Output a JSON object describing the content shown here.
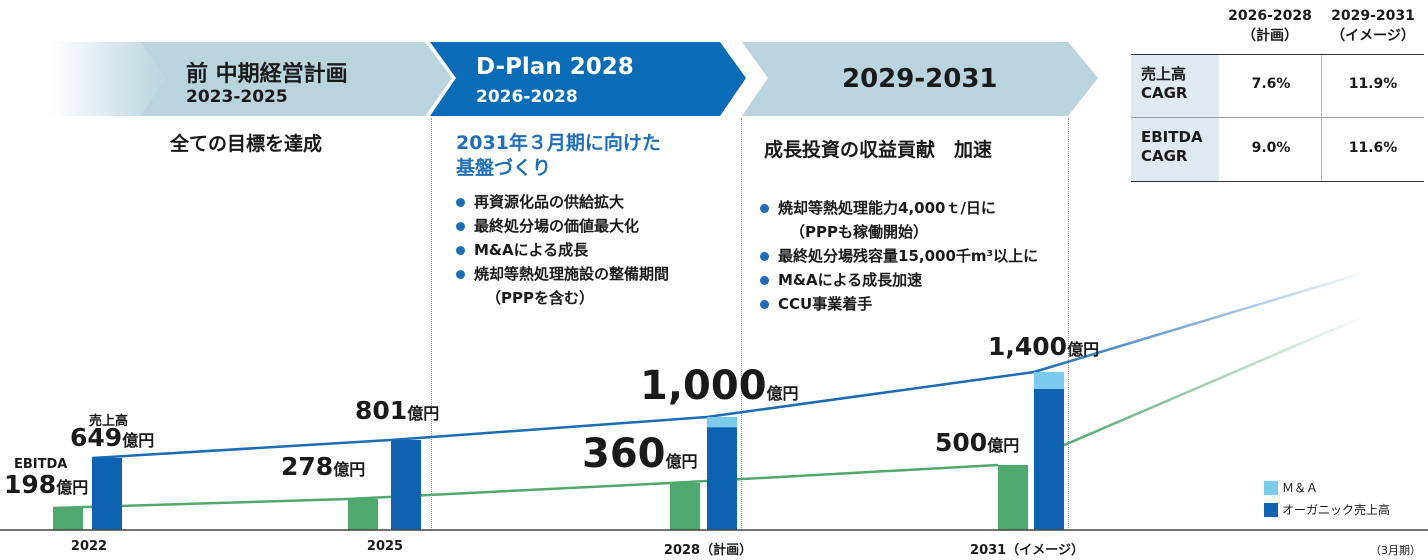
{
  "phases": [
    {
      "title": "前 中期経営計画",
      "sub": "2023-2025",
      "subtitle": "全ての目標を達成"
    },
    {
      "title": "D-Plan 2028",
      "sub": "2026-2028",
      "subtitle": "2031年３月期に向けた\n基盤づくり",
      "bullets": [
        "再資源化品の供給拡大",
        "最終処分場の価値最大化",
        "M&Aによる成長",
        "焼却等熱処理施設の整備期間",
        "（PPPを含む）"
      ]
    },
    {
      "title": "2029-2031",
      "subtitle": "成長投資の収益貢献　加速",
      "bullets": [
        "焼却等熱処理能力4,000ｔ/日に",
        "（PPPも稼働開始）",
        "最終処分場残容量15,000千m³以上に",
        "M&Aによる成長加速",
        "CCU事業着手"
      ]
    }
  ],
  "cagr_table": {
    "col1": "2026-2028",
    "col1_sub": "（計画）",
    "col2": "2029-2031",
    "col2_sub": "（イメージ）",
    "rows": [
      {
        "label1": "売上高",
        "label2": "CAGR",
        "v1": "7.6%",
        "v2": "11.9%"
      },
      {
        "label1": "EBITDA",
        "label2": "CAGR",
        "v1": "9.0%",
        "v2": "11.6%"
      }
    ]
  },
  "legend": {
    "ma": "Ｍ＆Ａ",
    "organic": "オーガニック売上高"
  },
  "period_note": "（3月期）",
  "labels": {
    "ebitda_tag": "EBITDA",
    "sales_tag": "売上高",
    "ebitda_2022": "198",
    "sales_2022": "649",
    "ebitda_2025": "278",
    "sales_2025": "801",
    "ebitda_2028": "360",
    "sales_2028": "1,000",
    "ebitda_2031": "500",
    "sales_2031": "1,400",
    "unit": "億円"
  },
  "colors": {
    "ebitda": "#4fa86e",
    "organic": "#0f62b0",
    "ma": "#7ccbee",
    "sales_line": "#1a6cb5",
    "arrow_light": "#b9d4df",
    "arrow_dark": "#0a6bb6"
  },
  "chart_data": {
    "type": "bar",
    "categories": [
      "2022",
      "2025",
      "2028（計画）",
      "2031（イメージ）"
    ],
    "series": [
      {
        "name": "EBITDA",
        "values": [
          198,
          278,
          360,
          500
        ]
      },
      {
        "name": "オーガニック売上高",
        "values": [
          649,
          801,
          910,
          1250
        ]
      },
      {
        "name": "Ｍ＆Ａ",
        "values": [
          0,
          0,
          90,
          150
        ]
      }
    ],
    "totals": {
      "売上高": [
        649,
        801,
        1000,
        1400
      ]
    },
    "ylabel": "億円"
  }
}
